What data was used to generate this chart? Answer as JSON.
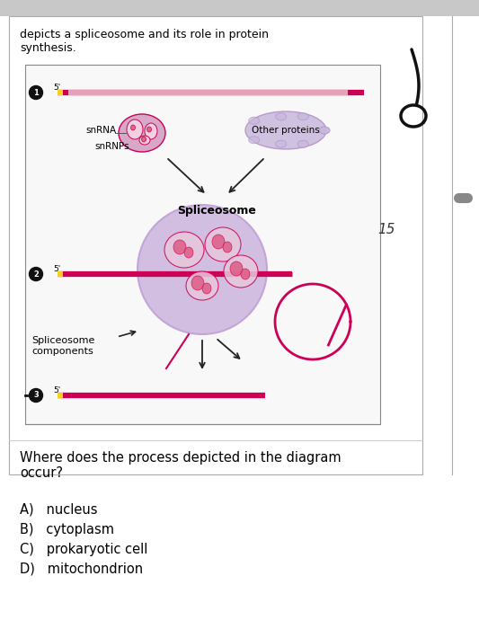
{
  "bg_color": "#e8e8e8",
  "page_bg": "#ffffff",
  "box_bg": "#ffffff",
  "title_text": "depicts a spliceosome and its role in protein\nsynthesis.",
  "question_text": "Where does the process depicted in the diagram\noccur?",
  "answers": [
    "A)\tnucleus",
    "B)\tcytoplasm",
    "C)\tprokaryotic cell",
    "D)\tmitochondrion"
  ],
  "number_label": "15",
  "mrna_color": "#cc0055",
  "mrna_pink_light": "#e8a0b8",
  "mrna_yellow": "#f5d020",
  "snrnp_fill": "#d8a8c8",
  "snrnp_outline": "#cc0055",
  "spliceosome_fill": "#cdb8de",
  "spliceosome_outline": "#c0a0d8",
  "other_proteins_fill": "#c8b8dc",
  "other_proteins_outline": "#b090c8",
  "arrow_color": "#222222",
  "label_color": "#000000",
  "handwritten_color": "#111111",
  "num15_color": "#333333"
}
